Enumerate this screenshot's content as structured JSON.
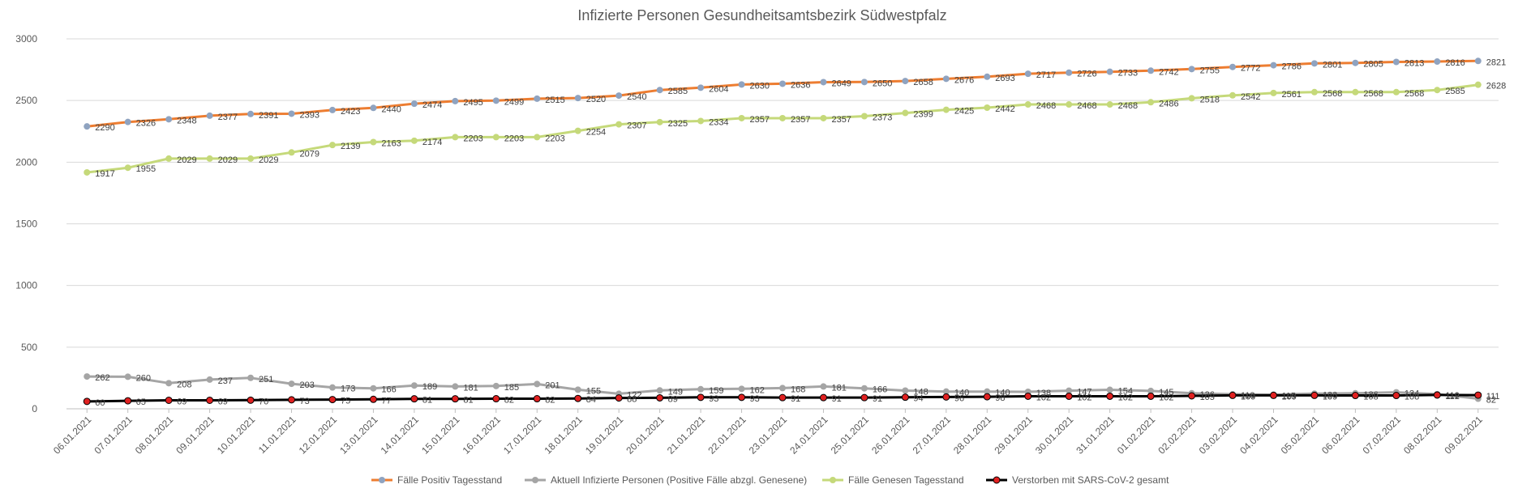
{
  "chart_data": {
    "type": "line",
    "title": "Infizierte Personen Gesundheitsamtsbezirk Südwestpfalz",
    "xlabel": "",
    "ylabel": "",
    "ylim": [
      0,
      3000
    ],
    "yticks": [
      0,
      500,
      1000,
      1500,
      2000,
      2500,
      3000
    ],
    "grid": true,
    "legend_position": "bottom",
    "categories": [
      "06.01.2021",
      "07.01.2021",
      "08.01.2021",
      "09.01.2021",
      "10.01.2021",
      "11.01.2021",
      "12.01.2021",
      "13.01.2021",
      "14.01.2021",
      "15.01.2021",
      "16.01.2021",
      "17.01.2021",
      "18.01.2021",
      "19.01.2021",
      "20.01.2021",
      "21.01.2021",
      "22.01.2021",
      "23.01.2021",
      "24.01.2021",
      "25.01.2021",
      "26.01.2021",
      "27.01.2021",
      "28.01.2021",
      "29.01.2021",
      "30.01.2021",
      "31.01.2021",
      "01.02.2021",
      "02.02.2021",
      "03.02.2021",
      "04.02.2021",
      "05.02.2021",
      "06.02.2021",
      "07.02.2021",
      "08.02.2021",
      "09.02.2021"
    ],
    "series": [
      {
        "name": "Fälle Positiv Tagesstand",
        "color": "#ED7D31",
        "marker": "#8FA3C0",
        "values": [
          2290,
          2326,
          2348,
          2377,
          2391,
          2393,
          2423,
          2440,
          2474,
          2495,
          2499,
          2515,
          2520,
          2540,
          2585,
          2604,
          2630,
          2636,
          2649,
          2650,
          2658,
          2676,
          2693,
          2717,
          2726,
          2733,
          2742,
          2755,
          2772,
          2786,
          2801,
          2805,
          2813,
          2816,
          2821
        ]
      },
      {
        "name": "Aktuell Infizierte Personen (Positive Fälle abzgl. Genesene)",
        "color": "#A5A5A5",
        "marker": "#A5A5A5",
        "values": [
          262,
          260,
          208,
          237,
          251,
          203,
          173,
          166,
          189,
          181,
          185,
          201,
          155,
          122,
          149,
          159,
          162,
          168,
          181,
          166,
          148,
          140,
          140,
          138,
          147,
          154,
          145,
          126,
          118,
          115,
          123,
          126,
          134,
          119,
          82
        ]
      },
      {
        "name": "Fälle Genesen Tagesstand",
        "color": "#C5D97A",
        "marker": "#C5D97A",
        "values": [
          1917,
          1955,
          2029,
          2029,
          2029,
          2079,
          2139,
          2163,
          2174,
          2203,
          2203,
          2203,
          2254,
          2307,
          2325,
          2334,
          2357,
          2357,
          2357,
          2373,
          2399,
          2425,
          2442,
          2468,
          2468,
          2468,
          2486,
          2518,
          2542,
          2561,
          2568,
          2568,
          2568,
          2585,
          2628
        ]
      },
      {
        "name": "Verstorben mit SARS-CoV-2 gesamt",
        "color": "#000000",
        "marker": "#E02020",
        "values": [
          60,
          65,
          69,
          69,
          70,
          73,
          75,
          77,
          81,
          81,
          82,
          82,
          84,
          88,
          89,
          93,
          93,
          91,
          91,
          91,
          94,
          96,
          98,
          102,
          102,
          102,
          102,
          105,
          109,
          109,
          109,
          108,
          108,
          112,
          111
        ]
      }
    ]
  }
}
